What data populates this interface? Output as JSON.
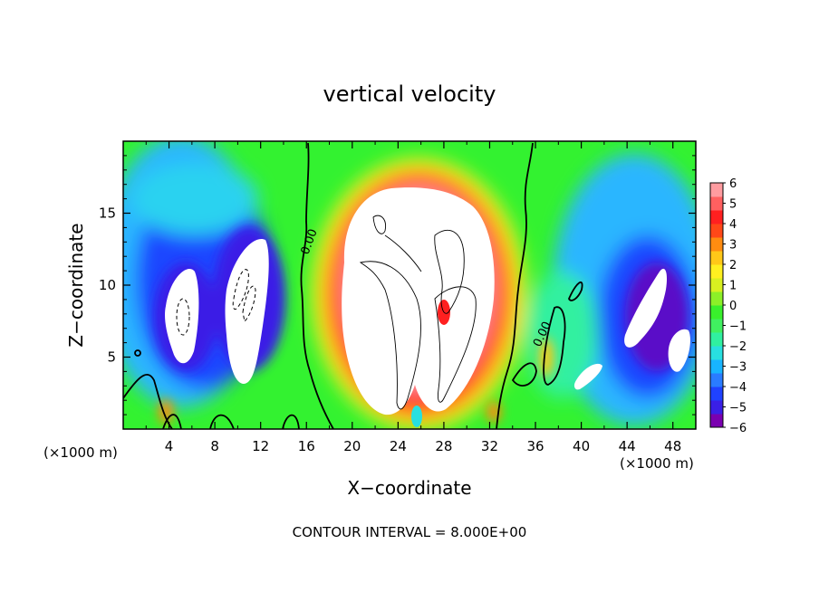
{
  "chart_data": {
    "type": "heatmap",
    "title": "vertical velocity",
    "xlabel": "X−coordinate",
    "ylabel": "Z−coordinate",
    "x_unit_left": "(×1000 m)",
    "x_unit_right": "(×1000 m)",
    "xlim": [
      0,
      50
    ],
    "ylim": [
      0,
      20
    ],
    "x_ticks": [
      "4",
      "8",
      "12",
      "16",
      "20",
      "24",
      "28",
      "32",
      "36",
      "40",
      "44",
      "48"
    ],
    "y_ticks": [
      "5",
      "10",
      "15"
    ],
    "x_tick_values": [
      4,
      8,
      12,
      16,
      20,
      24,
      28,
      32,
      36,
      40,
      44,
      48
    ],
    "y_tick_values": [
      5,
      10,
      15
    ],
    "colorbar": {
      "labels": [
        "6",
        "5",
        "4",
        "3",
        "2",
        "1",
        "0",
        "−1",
        "−2",
        "−3",
        "−4",
        "−5",
        "−6"
      ],
      "range": [
        -6,
        6
      ],
      "colors": [
        "#7a00b0",
        "#3a1fe6",
        "#1f42ff",
        "#2a7cff",
        "#18b4ff",
        "#28e0e0",
        "#30f0a0",
        "#40f060",
        "#39f02c",
        "#8cf028",
        "#d8f020",
        "#fff020",
        "#ffc818",
        "#ff8c10",
        "#ff4818",
        "#ff2020",
        "#ff6060",
        "#ff9ca0"
      ]
    },
    "contour_labels": [
      "0.00",
      "0.00"
    ],
    "footer": "CONTOUR INTERVAL = 8.000E+00"
  }
}
